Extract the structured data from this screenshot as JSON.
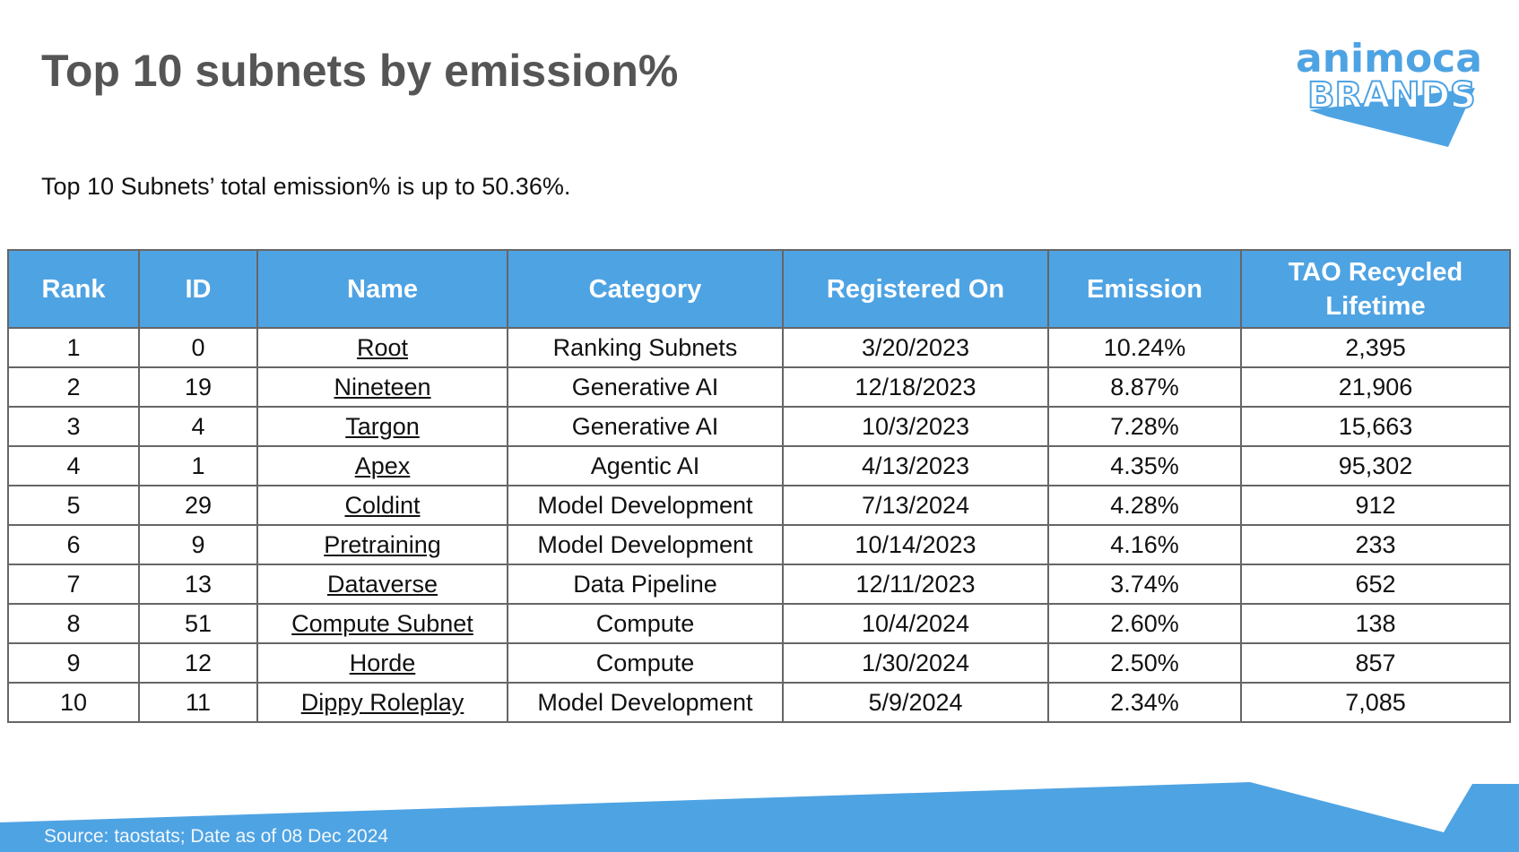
{
  "header": {
    "title": "Top 10 subnets by emission%",
    "subtitle": "Top 10 Subnets’ total emission% is up to 50.36%.",
    "logo": {
      "line1": "animoca",
      "line2": "BRANDS"
    }
  },
  "table": {
    "columns": [
      "Rank",
      "ID",
      "Name",
      "Category",
      "Registered On",
      "Emission",
      "TAO Recycled Lifetime"
    ],
    "rows": [
      [
        "1",
        "0",
        "Root",
        "Ranking Subnets",
        "3/20/2023",
        "10.24%",
        "2,395"
      ],
      [
        "2",
        "19",
        "Nineteen",
        "Generative AI",
        "12/18/2023",
        "8.87%",
        "21,906"
      ],
      [
        "3",
        "4",
        "Targon",
        "Generative AI",
        "10/3/2023",
        "7.28%",
        "15,663"
      ],
      [
        "4",
        "1",
        "Apex",
        "Agentic AI",
        "4/13/2023",
        "4.35%",
        "95,302"
      ],
      [
        "5",
        "29",
        "Coldint",
        "Model Development",
        "7/13/2024",
        "4.28%",
        "912"
      ],
      [
        "6",
        "9",
        "Pretraining",
        "Model Development",
        "10/14/2023",
        "4.16%",
        "233"
      ],
      [
        "7",
        "13",
        "Dataverse",
        "Data Pipeline",
        "12/11/2023",
        "3.74%",
        "652"
      ],
      [
        "8",
        "51",
        "Compute Subnet",
        "Compute",
        "10/4/2024",
        "2.60%",
        "138"
      ],
      [
        "9",
        "12",
        "Horde",
        "Compute",
        "1/30/2024",
        "2.50%",
        "857"
      ],
      [
        "10",
        "11",
        "Dippy Roleplay",
        "Model Development",
        "5/9/2024",
        "2.34%",
        "7,085"
      ]
    ]
  },
  "footer": {
    "source": "Source: taostats; Date as of 08 Dec 2024"
  }
}
